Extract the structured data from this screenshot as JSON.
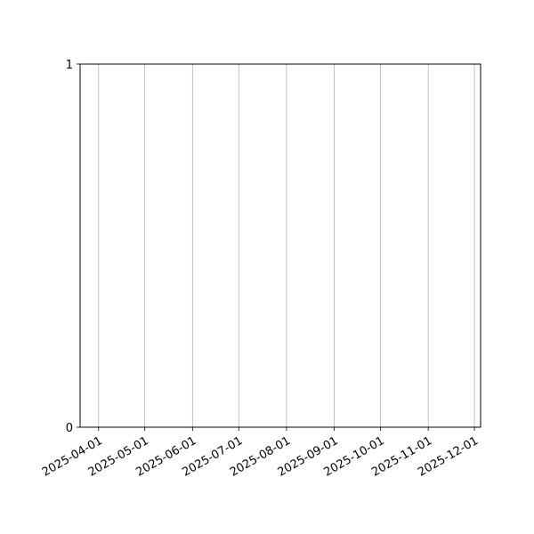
{
  "chart_data": {
    "type": "line",
    "title": "",
    "xlabel": "",
    "ylabel": "",
    "series": [],
    "xlim": [
      "2025-03-20",
      "2025-12-05"
    ],
    "ylim": [
      0,
      1
    ],
    "x_ticks": [
      "2025-04-01",
      "2025-05-01",
      "2025-06-01",
      "2025-07-01",
      "2025-08-01",
      "2025-09-01",
      "2025-10-01",
      "2025-11-01",
      "2025-12-01"
    ],
    "y_ticks": [
      "0",
      "1"
    ],
    "grid": "x-axis only",
    "grid_color": "#b0b0b0",
    "x_tick_rotation": 30
  }
}
